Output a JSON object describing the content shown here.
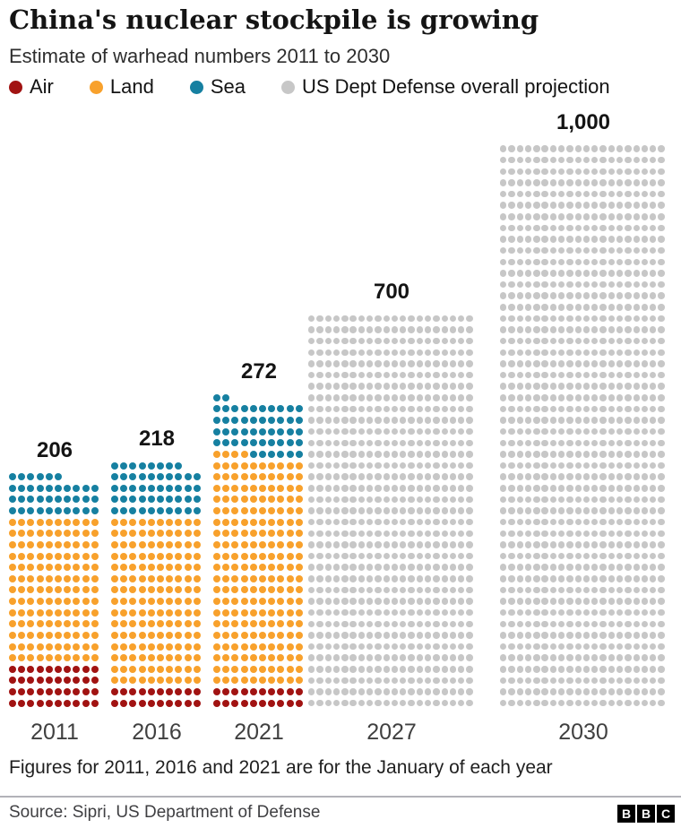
{
  "header": {
    "title": "China's nuclear stockpile is growing",
    "subtitle": "Estimate of warhead numbers 2011 to 2030"
  },
  "legend": {
    "position": "top",
    "items": [
      {
        "label": "Air",
        "color": "#a11312"
      },
      {
        "label": "Land",
        "color": "#f8a12c"
      },
      {
        "label": "Sea",
        "color": "#1680a1"
      },
      {
        "label": "US Dept Defense overall projection",
        "color": "#c7c7c7"
      }
    ]
  },
  "chart_data": {
    "type": "pictogram-dot-matrix",
    "title": "China's nuclear stockpile is growing",
    "subtitle": "Estimate of warhead numbers 2011 to 2030",
    "categories": [
      "2011",
      "2016",
      "2021",
      "2027",
      "2030"
    ],
    "totals": [
      206,
      218,
      272,
      700,
      1000
    ],
    "value_labels": [
      "206",
      "218",
      "272",
      "700",
      "1,000"
    ],
    "fill_order": "bottom-left upward, segments stacked bottom to top",
    "columns": [
      {
        "year": "2011",
        "total": 206,
        "label": "206",
        "dots_per_row": 10,
        "segments": [
          {
            "name": "Air",
            "value": 40,
            "color": "#a11312"
          },
          {
            "name": "Land",
            "value": 130,
            "color": "#f8a12c"
          },
          {
            "name": "Sea",
            "value": 36,
            "color": "#1680a1"
          }
        ]
      },
      {
        "year": "2016",
        "total": 218,
        "label": "218",
        "dots_per_row": 10,
        "segments": [
          {
            "name": "Air",
            "value": 20,
            "color": "#a11312"
          },
          {
            "name": "Land",
            "value": 150,
            "color": "#f8a12c"
          },
          {
            "name": "Sea",
            "value": 48,
            "color": "#1680a1"
          }
        ]
      },
      {
        "year": "2021",
        "total": 272,
        "label": "272",
        "dots_per_row": 10,
        "segments": [
          {
            "name": "Air",
            "value": 20,
            "color": "#a11312"
          },
          {
            "name": "Land",
            "value": 204,
            "color": "#f8a12c"
          },
          {
            "name": "Sea",
            "value": 48,
            "color": "#1680a1"
          }
        ]
      },
      {
        "year": "2027",
        "total": 700,
        "label": "700",
        "dots_per_row": 20,
        "segments": [
          {
            "name": "US Dept Defense overall projection",
            "value": 700,
            "color": "#c7c7c7"
          }
        ]
      },
      {
        "year": "2030",
        "total": 1000,
        "label": "1,000",
        "dots_per_row": 20,
        "segments": [
          {
            "name": "US Dept Defense overall projection",
            "value": 1000,
            "color": "#c7c7c7"
          }
        ]
      }
    ]
  },
  "footnote": "Figures for 2011, 2016 and 2021 are for the January of each year",
  "footer": {
    "source": "Source: Sipri, US Department of Defense",
    "logo_letters": [
      "B",
      "B",
      "C"
    ]
  }
}
